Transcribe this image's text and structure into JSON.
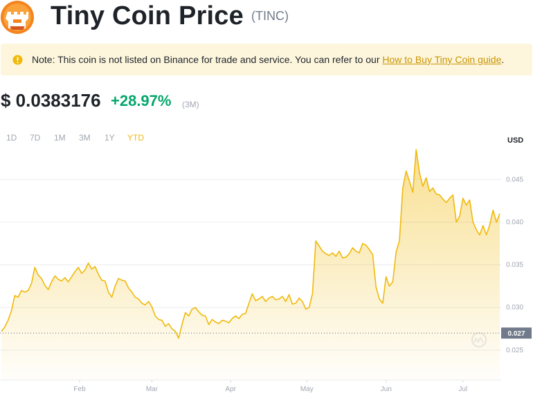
{
  "header": {
    "title": "Tiny Coin Price",
    "symbol": "(TINC)",
    "logo_icon": "tiny-coin-castle-logo"
  },
  "note": {
    "icon": "warning-circle-icon",
    "text": "Note: This coin is not listed on Binance for trade and service. You can refer to our ",
    "link_text": "How to Buy Tiny Coin guide",
    "suffix": "."
  },
  "price": {
    "value": "$ 0.0383176",
    "change": "+28.97%",
    "period": "(3M)"
  },
  "ranges": {
    "items": [
      "1D",
      "7D",
      "1M",
      "3M",
      "1Y",
      "YTD"
    ],
    "active": "YTD"
  },
  "colors": {
    "accent": "#f0b90b",
    "positive": "#03a66d",
    "note_bg": "#fdf6dd",
    "line": "#f0b90b"
  },
  "chart_data": {
    "type": "area",
    "unit_label": "USD",
    "x_labels": [
      "Feb",
      "Mar",
      "Apr",
      "May",
      "Jun",
      "Jul"
    ],
    "y_ticks": [
      0.025,
      0.03,
      0.035,
      0.04,
      0.045
    ],
    "y_tick_labels": [
      "0.025",
      "0.030",
      "0.035",
      "0.040",
      "0.045"
    ],
    "ylim": [
      0.0215,
      0.049
    ],
    "reference_value": 0.027,
    "reference_label": "0.027",
    "grid": true,
    "watermark_icon": "coinmarketcap-logo-icon",
    "series": [
      {
        "values": [
          0.0272,
          0.0277,
          0.0285,
          0.0296,
          0.0314,
          0.0312,
          0.032,
          0.0318,
          0.032,
          0.0328,
          0.0347,
          0.0338,
          0.0334,
          0.0326,
          0.0321,
          0.033,
          0.0337,
          0.0333,
          0.0331,
          0.0335,
          0.033,
          0.0336,
          0.0342,
          0.0347,
          0.034,
          0.0344,
          0.0352,
          0.0345,
          0.0348,
          0.0339,
          0.0332,
          0.0331,
          0.0318,
          0.0312,
          0.0325,
          0.0334,
          0.0332,
          0.0331,
          0.0323,
          0.0318,
          0.0312,
          0.031,
          0.0305,
          0.0303,
          0.0307,
          0.0301,
          0.029,
          0.0286,
          0.0285,
          0.0278,
          0.0281,
          0.0275,
          0.0272,
          0.0264,
          0.028,
          0.0294,
          0.029,
          0.0298,
          0.03,
          0.0295,
          0.0291,
          0.029,
          0.028,
          0.0286,
          0.0283,
          0.0281,
          0.0285,
          0.0284,
          0.0282,
          0.0287,
          0.029,
          0.0287,
          0.0292,
          0.0293,
          0.0305,
          0.0316,
          0.0308,
          0.031,
          0.0313,
          0.0307,
          0.0311,
          0.0313,
          0.0309,
          0.031,
          0.0313,
          0.0307,
          0.0315,
          0.0304,
          0.0305,
          0.0311,
          0.0307,
          0.0298,
          0.03,
          0.0316,
          0.0378,
          0.0372,
          0.0366,
          0.0363,
          0.0361,
          0.0364,
          0.036,
          0.0366,
          0.0358,
          0.0359,
          0.0363,
          0.037,
          0.0366,
          0.0364,
          0.0375,
          0.0373,
          0.0368,
          0.0362,
          0.0324,
          0.031,
          0.0305,
          0.0336,
          0.0325,
          0.033,
          0.0365,
          0.0378,
          0.044,
          0.046,
          0.0448,
          0.0435,
          0.0485,
          0.0458,
          0.0442,
          0.0452,
          0.0436,
          0.044,
          0.0433,
          0.0432,
          0.0427,
          0.0423,
          0.0428,
          0.0432,
          0.04,
          0.0407,
          0.0428,
          0.042,
          0.0426,
          0.04,
          0.0391,
          0.0385,
          0.0396,
          0.0385,
          0.0397,
          0.0414,
          0.04,
          0.041
        ]
      }
    ]
  }
}
